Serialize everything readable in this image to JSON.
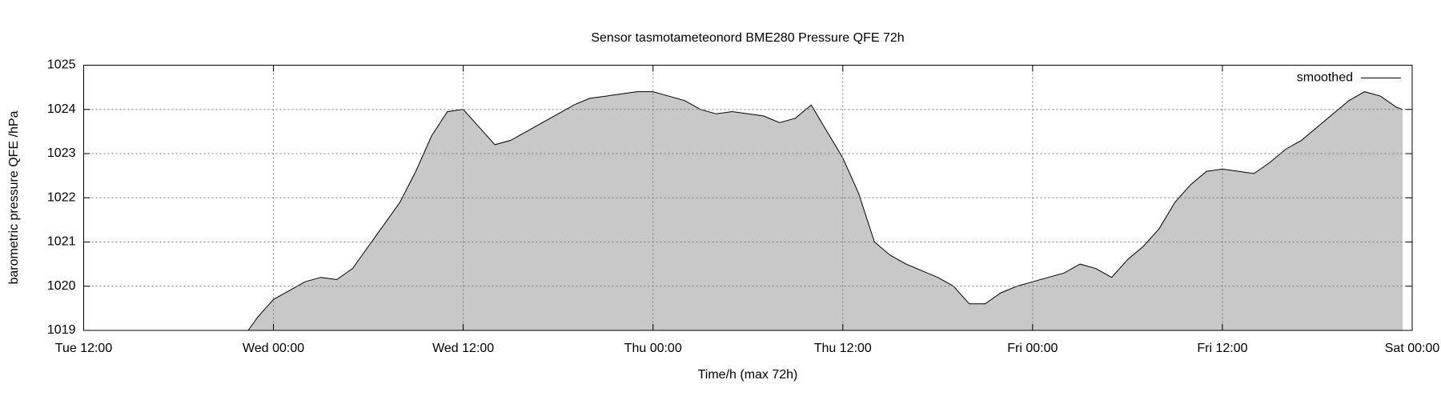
{
  "chart_data": {
    "type": "area",
    "title": "Sensor tasmotameteonord BME280 Pressure QFE 72h",
    "x_label": "Time/h (max 72h)",
    "y_label": "barometric pressure QFE /hPa",
    "x": [
      10.4,
      11,
      12,
      13,
      14,
      15,
      16,
      17,
      18,
      19,
      20,
      21,
      22,
      23,
      24,
      25,
      26,
      27,
      28,
      29,
      30,
      31,
      32,
      33,
      34,
      35,
      36,
      37,
      38,
      39,
      40,
      41,
      42,
      43,
      44,
      45,
      46,
      47,
      48,
      49,
      50,
      51,
      52,
      53,
      54,
      55,
      56,
      57,
      58,
      59,
      60,
      61,
      62,
      63,
      64,
      65,
      66,
      67,
      68,
      69,
      70,
      71,
      72,
      73,
      74,
      75,
      76,
      77,
      78,
      79,
      80,
      81,
      82,
      83,
      83.4
    ],
    "series": [
      {
        "name": "smoothed",
        "color": "#000000",
        "fill": "#c8c8c8",
        "values": [
          1019.0,
          1019.3,
          1019.7,
          1019.9,
          1020.1,
          1020.2,
          1020.15,
          1020.4,
          1020.9,
          1021.4,
          1021.9,
          1022.6,
          1023.4,
          1023.95,
          1024.0,
          1023.6,
          1023.2,
          1023.3,
          1023.5,
          1023.7,
          1023.9,
          1024.1,
          1024.25,
          1024.3,
          1024.35,
          1024.4,
          1024.4,
          1024.3,
          1024.2,
          1024.0,
          1023.9,
          1023.95,
          1023.9,
          1023.85,
          1023.7,
          1023.8,
          1024.1,
          1023.5,
          1022.9,
          1022.1,
          1021.0,
          1020.7,
          1020.5,
          1020.35,
          1020.2,
          1020.0,
          1019.6,
          1019.6,
          1019.85,
          1020.0,
          1020.1,
          1020.2,
          1020.3,
          1020.5,
          1020.4,
          1020.2,
          1020.6,
          1020.9,
          1021.3,
          1021.9,
          1022.3,
          1022.6,
          1022.65,
          1022.6,
          1022.55,
          1022.8,
          1023.1,
          1023.3,
          1023.6,
          1023.9,
          1024.2,
          1024.4,
          1024.3,
          1024.05,
          1024.0
        ]
      }
    ],
    "xlim": [
      0,
      84
    ],
    "xticks": [
      {
        "value": 0,
        "label": "Tue 12:00"
      },
      {
        "value": 12,
        "label": "Wed 00:00"
      },
      {
        "value": 24,
        "label": "Wed 12:00"
      },
      {
        "value": 36,
        "label": "Thu 00:00"
      },
      {
        "value": 48,
        "label": "Thu 12:00"
      },
      {
        "value": 60,
        "label": "Fri 00:00"
      },
      {
        "value": 72,
        "label": "Fri 12:00"
      },
      {
        "value": 84,
        "label": "Sat 00:00"
      }
    ],
    "ylim": [
      1019,
      1025
    ],
    "yticks": [
      1019,
      1020,
      1021,
      1022,
      1023,
      1024,
      1025
    ],
    "grid": true,
    "legend": "top-right"
  }
}
